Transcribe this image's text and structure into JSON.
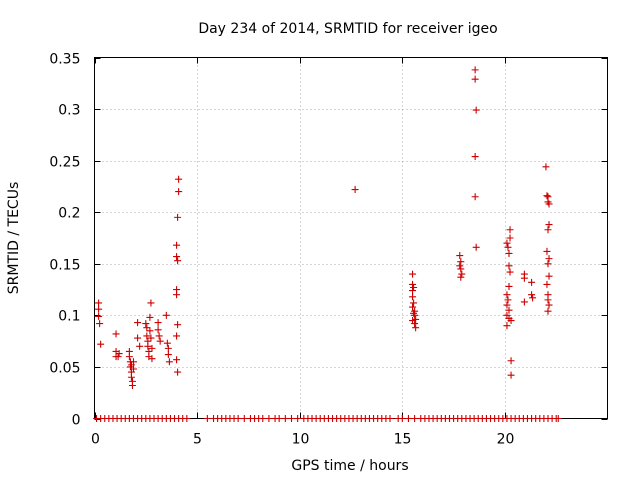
{
  "chart_data": {
    "type": "scatter",
    "title": "Day 234 of 2014, SRMTID for receiver igeo",
    "xlabel": "GPS time / hours",
    "ylabel": "SRMTID / TECUs",
    "xlim": [
      0,
      25
    ],
    "ylim": [
      0,
      0.35
    ],
    "xticks": [
      0,
      5,
      10,
      15,
      20
    ],
    "xtick_labels": [
      "0",
      "5",
      "10",
      "15",
      "20"
    ],
    "yticks": [
      0,
      0.05,
      0.1,
      0.15,
      0.2,
      0.25,
      0.3,
      0.35
    ],
    "ytick_labels": [
      "0",
      "0.05",
      "0.1",
      "0.15",
      "0.2",
      "0.25",
      "0.3",
      "0.35"
    ],
    "grid": true,
    "marker": "+",
    "color": "#cc0000",
    "series": [
      {
        "name": "SRMTID",
        "points": [
          [
            0.2,
            0.112
          ],
          [
            0.2,
            0.106
          ],
          [
            0.2,
            0.099
          ],
          [
            0.25,
            0.092
          ],
          [
            0.3,
            0.072
          ],
          [
            1.05,
            0.082
          ],
          [
            1.05,
            0.065
          ],
          [
            1.05,
            0.06
          ],
          [
            1.15,
            0.06
          ],
          [
            1.2,
            0.063
          ],
          [
            1.7,
            0.065
          ],
          [
            1.7,
            0.06
          ],
          [
            1.75,
            0.055
          ],
          [
            1.75,
            0.05
          ],
          [
            1.8,
            0.052
          ],
          [
            1.8,
            0.045
          ],
          [
            1.8,
            0.04
          ],
          [
            1.85,
            0.036
          ],
          [
            1.85,
            0.032
          ],
          [
            1.9,
            0.055
          ],
          [
            1.9,
            0.048
          ],
          [
            2.1,
            0.093
          ],
          [
            2.1,
            0.078
          ],
          [
            2.2,
            0.07
          ],
          [
            2.5,
            0.092
          ],
          [
            2.55,
            0.088
          ],
          [
            2.55,
            0.08
          ],
          [
            2.6,
            0.075
          ],
          [
            2.6,
            0.07
          ],
          [
            2.65,
            0.065
          ],
          [
            2.65,
            0.06
          ],
          [
            2.7,
            0.098
          ],
          [
            2.7,
            0.085
          ],
          [
            2.75,
            0.112
          ],
          [
            2.75,
            0.078
          ],
          [
            2.8,
            0.068
          ],
          [
            2.8,
            0.058
          ],
          [
            3.1,
            0.093
          ],
          [
            3.1,
            0.086
          ],
          [
            3.15,
            0.08
          ],
          [
            3.2,
            0.075
          ],
          [
            3.5,
            0.1
          ],
          [
            3.55,
            0.073
          ],
          [
            3.6,
            0.068
          ],
          [
            3.6,
            0.062
          ],
          [
            3.65,
            0.055
          ],
          [
            4.1,
            0.232
          ],
          [
            4.1,
            0.22
          ],
          [
            4.05,
            0.195
          ],
          [
            4.0,
            0.168
          ],
          [
            4.0,
            0.157
          ],
          [
            4.05,
            0.153
          ],
          [
            4.0,
            0.125
          ],
          [
            4.0,
            0.12
          ],
          [
            4.05,
            0.091
          ],
          [
            4.0,
            0.08
          ],
          [
            4.0,
            0.057
          ],
          [
            4.05,
            0.045
          ],
          [
            12.7,
            0.222
          ],
          [
            15.5,
            0.14
          ],
          [
            15.5,
            0.13
          ],
          [
            15.55,
            0.127
          ],
          [
            15.5,
            0.124
          ],
          [
            15.5,
            0.118
          ],
          [
            15.55,
            0.112
          ],
          [
            15.5,
            0.108
          ],
          [
            15.6,
            0.104
          ],
          [
            15.6,
            0.1
          ],
          [
            15.65,
            0.096
          ],
          [
            15.6,
            0.092
          ],
          [
            15.65,
            0.088
          ],
          [
            15.5,
            0.095
          ],
          [
            15.55,
            0.102
          ],
          [
            17.8,
            0.158
          ],
          [
            17.85,
            0.152
          ],
          [
            17.8,
            0.148
          ],
          [
            17.85,
            0.145
          ],
          [
            17.9,
            0.14
          ],
          [
            17.85,
            0.137
          ],
          [
            18.55,
            0.338
          ],
          [
            18.55,
            0.329
          ],
          [
            18.6,
            0.299
          ],
          [
            18.55,
            0.254
          ],
          [
            18.55,
            0.215
          ],
          [
            18.6,
            0.166
          ],
          [
            20.1,
            0.17
          ],
          [
            20.15,
            0.166
          ],
          [
            20.25,
            0.183
          ],
          [
            20.25,
            0.175
          ],
          [
            20.2,
            0.16
          ],
          [
            20.2,
            0.148
          ],
          [
            20.25,
            0.142
          ],
          [
            20.2,
            0.128
          ],
          [
            20.1,
            0.12
          ],
          [
            20.15,
            0.115
          ],
          [
            20.1,
            0.11
          ],
          [
            20.2,
            0.105
          ],
          [
            20.1,
            0.1
          ],
          [
            20.2,
            0.097
          ],
          [
            20.1,
            0.09
          ],
          [
            20.3,
            0.095
          ],
          [
            20.3,
            0.056
          ],
          [
            20.3,
            0.042
          ],
          [
            20.95,
            0.14
          ],
          [
            20.95,
            0.136
          ],
          [
            20.95,
            0.113
          ],
          [
            21.3,
            0.132
          ],
          [
            21.3,
            0.12
          ],
          [
            21.35,
            0.117
          ],
          [
            22.0,
            0.244
          ],
          [
            22.05,
            0.216
          ],
          [
            22.1,
            0.215
          ],
          [
            22.1,
            0.21
          ],
          [
            22.15,
            0.208
          ],
          [
            22.15,
            0.188
          ],
          [
            22.1,
            0.183
          ],
          [
            22.05,
            0.162
          ],
          [
            22.15,
            0.155
          ],
          [
            22.1,
            0.15
          ],
          [
            22.15,
            0.138
          ],
          [
            22.05,
            0.13
          ],
          [
            22.1,
            0.12
          ],
          [
            22.1,
            0.115
          ],
          [
            22.15,
            0.11
          ],
          [
            22.1,
            0.104
          ],
          [
            0.1,
            0.0
          ],
          [
            0.3,
            0.0
          ],
          [
            0.5,
            0.0
          ],
          [
            0.7,
            0.0
          ],
          [
            0.9,
            0.0
          ],
          [
            1.1,
            0.0
          ],
          [
            1.3,
            0.0
          ],
          [
            1.5,
            0.0
          ],
          [
            1.7,
            0.0
          ],
          [
            1.9,
            0.0
          ],
          [
            2.1,
            0.0
          ],
          [
            2.3,
            0.0
          ],
          [
            2.5,
            0.0
          ],
          [
            2.7,
            0.0
          ],
          [
            2.9,
            0.0
          ],
          [
            3.1,
            0.0
          ],
          [
            3.3,
            0.0
          ],
          [
            3.5,
            0.0
          ],
          [
            3.7,
            0.0
          ],
          [
            3.9,
            0.0
          ],
          [
            4.1,
            0.0
          ],
          [
            4.3,
            0.0
          ],
          [
            4.5,
            0.0
          ],
          [
            5.5,
            0.0
          ],
          [
            5.8,
            0.0
          ],
          [
            6.0,
            0.0
          ],
          [
            6.2,
            0.0
          ],
          [
            6.4,
            0.0
          ],
          [
            6.6,
            0.0
          ],
          [
            6.8,
            0.0
          ],
          [
            7.0,
            0.0
          ],
          [
            7.3,
            0.0
          ],
          [
            7.6,
            0.0
          ],
          [
            7.8,
            0.0
          ],
          [
            8.0,
            0.0
          ],
          [
            8.2,
            0.0
          ],
          [
            8.5,
            0.0
          ],
          [
            8.8,
            0.0
          ],
          [
            9.0,
            0.0
          ],
          [
            9.3,
            0.0
          ],
          [
            9.6,
            0.0
          ],
          [
            9.9,
            0.0
          ],
          [
            10.2,
            0.0
          ],
          [
            10.4,
            0.0
          ],
          [
            10.6,
            0.0
          ],
          [
            10.8,
            0.0
          ],
          [
            11.0,
            0.0
          ],
          [
            11.2,
            0.0
          ],
          [
            11.4,
            0.0
          ],
          [
            11.6,
            0.0
          ],
          [
            11.8,
            0.0
          ],
          [
            12.0,
            0.0
          ],
          [
            12.2,
            0.0
          ],
          [
            12.4,
            0.0
          ],
          [
            12.6,
            0.0
          ],
          [
            12.8,
            0.0
          ],
          [
            13.0,
            0.0
          ],
          [
            13.2,
            0.0
          ],
          [
            13.4,
            0.0
          ],
          [
            13.6,
            0.0
          ],
          [
            13.8,
            0.0
          ],
          [
            14.0,
            0.0
          ],
          [
            14.2,
            0.0
          ],
          [
            14.4,
            0.0
          ],
          [
            14.8,
            0.0
          ],
          [
            15.0,
            0.0
          ],
          [
            15.3,
            0.0
          ],
          [
            15.6,
            0.0
          ],
          [
            15.9,
            0.0
          ],
          [
            16.1,
            0.0
          ],
          [
            16.3,
            0.0
          ],
          [
            16.5,
            0.0
          ],
          [
            16.7,
            0.0
          ],
          [
            16.9,
            0.0
          ],
          [
            17.1,
            0.0
          ],
          [
            17.3,
            0.0
          ],
          [
            17.5,
            0.0
          ],
          [
            17.7,
            0.0
          ],
          [
            17.9,
            0.0
          ],
          [
            18.1,
            0.0
          ],
          [
            18.3,
            0.0
          ],
          [
            18.5,
            0.0
          ],
          [
            18.7,
            0.0
          ],
          [
            18.9,
            0.0
          ],
          [
            19.1,
            0.0
          ],
          [
            19.3,
            0.0
          ],
          [
            19.5,
            0.0
          ],
          [
            19.7,
            0.0
          ],
          [
            19.9,
            0.0
          ],
          [
            20.1,
            0.0
          ],
          [
            20.3,
            0.0
          ],
          [
            20.5,
            0.0
          ],
          [
            20.7,
            0.0
          ],
          [
            20.9,
            0.0
          ],
          [
            21.1,
            0.0
          ],
          [
            21.3,
            0.0
          ],
          [
            21.5,
            0.0
          ],
          [
            21.7,
            0.0
          ],
          [
            21.9,
            0.0
          ],
          [
            22.1,
            0.0
          ],
          [
            22.3,
            0.0
          ],
          [
            22.5,
            0.0
          ],
          [
            22.6,
            0.0
          ]
        ]
      }
    ]
  }
}
